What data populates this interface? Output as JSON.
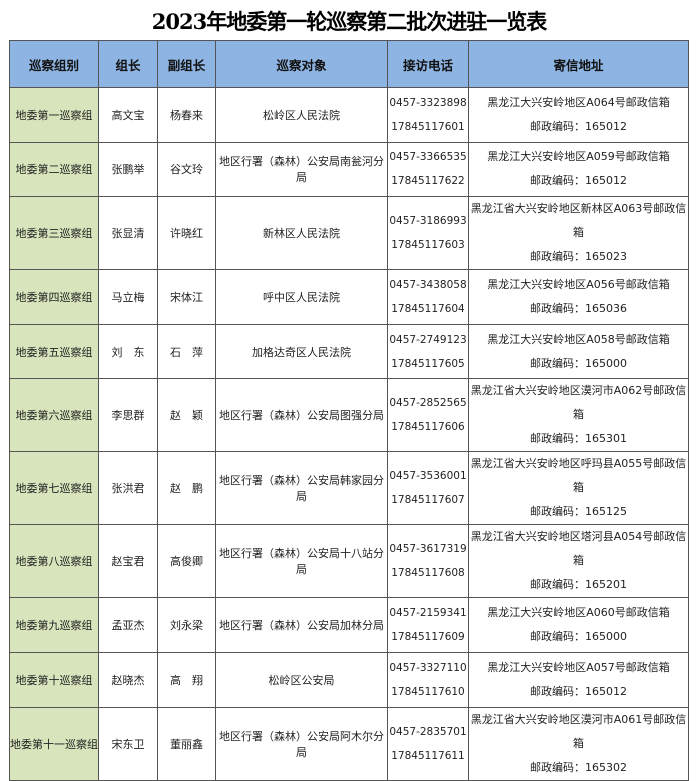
{
  "title": "2023年地委第一轮巡察第二批次进驻一览表",
  "headers": [
    "巡察组别",
    "组长",
    "副组长",
    "巡察对象",
    "接访电话",
    "寄信地址"
  ],
  "colors": {
    "header_bg": "#8db4e2",
    "group_col_bg": "#d8e4bc"
  },
  "rows": [
    {
      "group": "地委第一巡察组",
      "leader": "高文宝",
      "deputy": "杨春来",
      "target": "松岭区人民法院",
      "phone1": "0457-3323898",
      "phone2": "17845117601",
      "address": "黑龙江大兴安岭地区A064号邮政信箱",
      "postcode": "邮政编码：165012"
    },
    {
      "group": "地委第二巡察组",
      "leader": "张鹏举",
      "deputy": "谷文玲",
      "target": "地区行署（森林）公安局南瓮河分局",
      "phone1": "0457-3366535",
      "phone2": "17845117622",
      "address": "黑龙江大兴安岭地区A059号邮政信箱",
      "postcode": "邮政编码：165012"
    },
    {
      "group": "地委第三巡察组",
      "leader": "张显清",
      "deputy": "许晓红",
      "target": "新林区人民法院",
      "phone1": "0457-3186993",
      "phone2": "17845117603",
      "address": "黑龙江省大兴安岭地区新林区A063号邮政信箱",
      "postcode": "邮政编码：165023"
    },
    {
      "group": "地委第四巡察组",
      "leader": "马立梅",
      "deputy": "宋体江",
      "target": "呼中区人民法院",
      "phone1": "0457-3438058",
      "phone2": "17845117604",
      "address": "黑龙江大兴安岭地区A056号邮政信箱",
      "postcode": "邮政编码：165036"
    },
    {
      "group": "地委第五巡察组",
      "leader": "刘　东",
      "deputy": "石　萍",
      "target": "加格达奇区人民法院",
      "phone1": "0457-2749123",
      "phone2": "17845117605",
      "address": "黑龙江大兴安岭地区A058号邮政信箱",
      "postcode": "邮政编码：165000"
    },
    {
      "group": "地委第六巡察组",
      "leader": "李思群",
      "deputy": "赵　颖",
      "target": "地区行署（森林）公安局图强分局",
      "phone1": "0457-2852565",
      "phone2": "17845117606",
      "address": "黑龙江省大兴安岭地区漠河市A062号邮政信箱",
      "postcode": "邮政编码：165301"
    },
    {
      "group": "地委第七巡察组",
      "leader": "张洪君",
      "deputy": "赵　鹏",
      "target": "地区行署（森林）公安局韩家园分局",
      "phone1": "0457-3536001",
      "phone2": "17845117607",
      "address": "黑龙江省大兴安岭地区呼玛县A055号邮政信箱",
      "postcode": "邮政编码：165125"
    },
    {
      "group": "地委第八巡察组",
      "leader": "赵宝君",
      "deputy": "高俊卿",
      "target": "地区行署（森林）公安局十八站分局",
      "phone1": "0457-3617319",
      "phone2": "17845117608",
      "address": "黑龙江省大兴安岭地区塔河县A054号邮政信箱",
      "postcode": "邮政编码：165201"
    },
    {
      "group": "地委第九巡察组",
      "leader": "孟亚杰",
      "deputy": "刘永梁",
      "target": "地区行署（森林）公安局加林分局",
      "phone1": "0457-2159341",
      "phone2": "17845117609",
      "address": "黑龙江大兴安岭地区A060号邮政信箱",
      "postcode": "邮政编码：165000"
    },
    {
      "group": "地委第十巡察组",
      "leader": "赵晓杰",
      "deputy": "高　翔",
      "target": "松岭区公安局",
      "phone1": "0457-3327110",
      "phone2": "17845117610",
      "address": "黑龙江大兴安岭地区A057号邮政信箱",
      "postcode": "邮政编码：165012"
    },
    {
      "group": "地委第十一巡察组",
      "leader": "宋东卫",
      "deputy": "董丽鑫",
      "target": "地区行署（森林）公安局阿木尔分局",
      "phone1": "0457-2835701",
      "phone2": "17845117611",
      "address": "黑龙江省大兴安岭地区漠河市A061号邮政信箱",
      "postcode": "邮政编码：165302"
    }
  ]
}
